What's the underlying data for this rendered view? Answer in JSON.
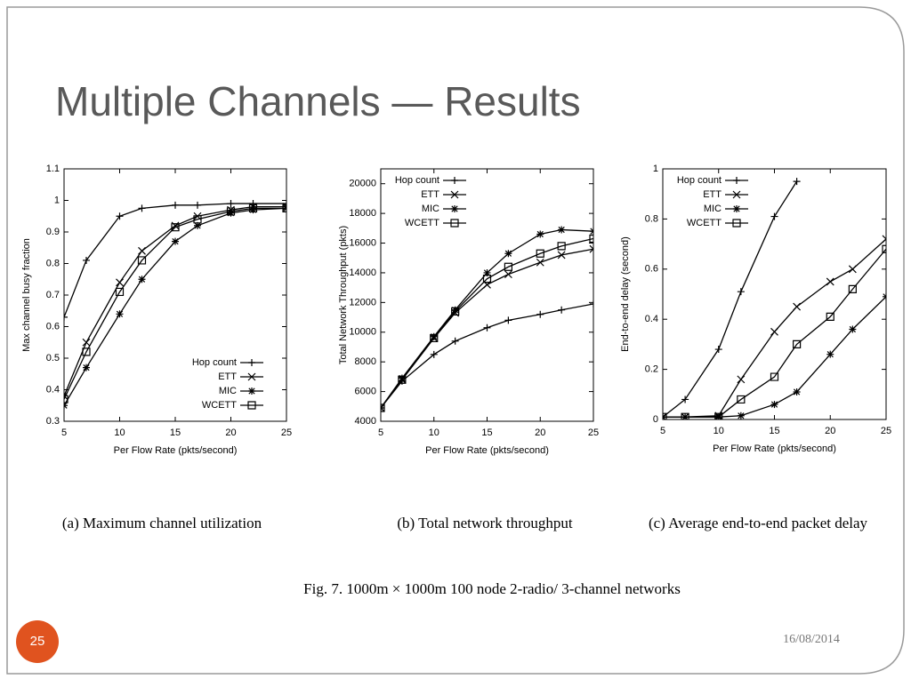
{
  "slide": {
    "title": "Multiple Channels — Results",
    "page_number": "25",
    "date": "16/08/2014",
    "figure_caption": "Fig. 7.   1000m × 1000m 100 node 2-radio/ 3-channel networks"
  },
  "chart_data": [
    {
      "type": "line",
      "caption": "(a) Maximum channel utilization",
      "x_label": "Per Flow Rate (pkts/second)",
      "y_label": "Max channel busy fraction",
      "x": [
        5,
        7,
        10,
        12,
        15,
        17,
        20,
        22,
        25
      ],
      "xlim": [
        5,
        25
      ],
      "xticks": [
        5,
        10,
        15,
        20,
        25
      ],
      "ylim": [
        0.3,
        1.1
      ],
      "yticks": [
        0.3,
        0.4,
        0.5,
        0.6,
        0.7,
        0.8,
        0.9,
        1,
        1.1
      ],
      "legend": "lower right",
      "series": [
        {
          "name": "Hop count",
          "color": "#000000",
          "marker": "plus",
          "values": [
            0.63,
            0.81,
            0.95,
            0.975,
            0.985,
            0.985,
            0.99,
            0.99,
            0.99
          ]
        },
        {
          "name": "ETT",
          "color": "#000000",
          "marker": "cross",
          "values": [
            0.38,
            0.55,
            0.74,
            0.84,
            0.92,
            0.95,
            0.97,
            0.98,
            0.98
          ]
        },
        {
          "name": "MIC",
          "color": "#000000",
          "marker": "star",
          "values": [
            0.35,
            0.47,
            0.64,
            0.75,
            0.87,
            0.92,
            0.96,
            0.97,
            0.975
          ]
        },
        {
          "name": "WCETT",
          "color": "#000000",
          "marker": "square",
          "values": [
            0.37,
            0.52,
            0.71,
            0.81,
            0.915,
            0.94,
            0.965,
            0.975,
            0.975
          ]
        }
      ]
    },
    {
      "type": "line",
      "caption": "(b) Total network throughput",
      "x_label": "Per Flow Rate (pkts/second)",
      "y_label": "Total Network Throughput (pkts)",
      "x": [
        5,
        7,
        10,
        12,
        15,
        17,
        20,
        22,
        25
      ],
      "xlim": [
        5,
        25
      ],
      "xticks": [
        5,
        10,
        15,
        20,
        25
      ],
      "ylim": [
        4000,
        21000
      ],
      "yticks": [
        4000,
        6000,
        8000,
        10000,
        12000,
        14000,
        16000,
        18000,
        20000
      ],
      "legend": "upper left",
      "series": [
        {
          "name": "Hop count",
          "color": "#000000",
          "marker": "plus",
          "values": [
            4900,
            6700,
            8500,
            9400,
            10300,
            10800,
            11200,
            11500,
            11900
          ]
        },
        {
          "name": "ETT",
          "color": "#000000",
          "marker": "cross",
          "values": [
            4900,
            6800,
            9600,
            11300,
            13200,
            13900,
            14700,
            15200,
            15600
          ]
        },
        {
          "name": "MIC",
          "color": "#000000",
          "marker": "star",
          "values": [
            4900,
            6900,
            9700,
            11500,
            14000,
            15300,
            16600,
            16900,
            16800
          ]
        },
        {
          "name": "WCETT",
          "color": "#000000",
          "marker": "square",
          "values": [
            4900,
            6800,
            9600,
            11400,
            13600,
            14400,
            15300,
            15800,
            16300
          ]
        }
      ]
    },
    {
      "type": "line",
      "caption": "(c) Average end-to-end packet delay",
      "x_label": "Per Flow Rate (pkts/second)",
      "y_label": "End-to-end delay (second)",
      "x": [
        5,
        7,
        10,
        12,
        15,
        17,
        20,
        22,
        25
      ],
      "xlim": [
        5,
        25
      ],
      "xticks": [
        5,
        10,
        15,
        20,
        25
      ],
      "ylim": [
        0,
        1
      ],
      "yticks": [
        0,
        0.2,
        0.4,
        0.6,
        0.8,
        1
      ],
      "legend": "upper left",
      "series": [
        {
          "name": "Hop count",
          "color": "#000000",
          "marker": "plus",
          "values": [
            0.01,
            0.08,
            0.28,
            0.51,
            0.81,
            0.95,
            null,
            null,
            null
          ]
        },
        {
          "name": "ETT",
          "color": "#000000",
          "marker": "cross",
          "values": [
            0.01,
            0.01,
            0.015,
            0.16,
            0.35,
            0.45,
            0.55,
            0.6,
            0.72
          ]
        },
        {
          "name": "MIC",
          "color": "#000000",
          "marker": "star",
          "values": [
            0.01,
            0.01,
            0.01,
            0.015,
            0.06,
            0.11,
            0.26,
            0.36,
            0.49
          ]
        },
        {
          "name": "WCETT",
          "color": "#000000",
          "marker": "square",
          "values": [
            0.01,
            0.01,
            0.01,
            0.08,
            0.17,
            0.3,
            0.41,
            0.52,
            0.68
          ]
        }
      ]
    }
  ]
}
